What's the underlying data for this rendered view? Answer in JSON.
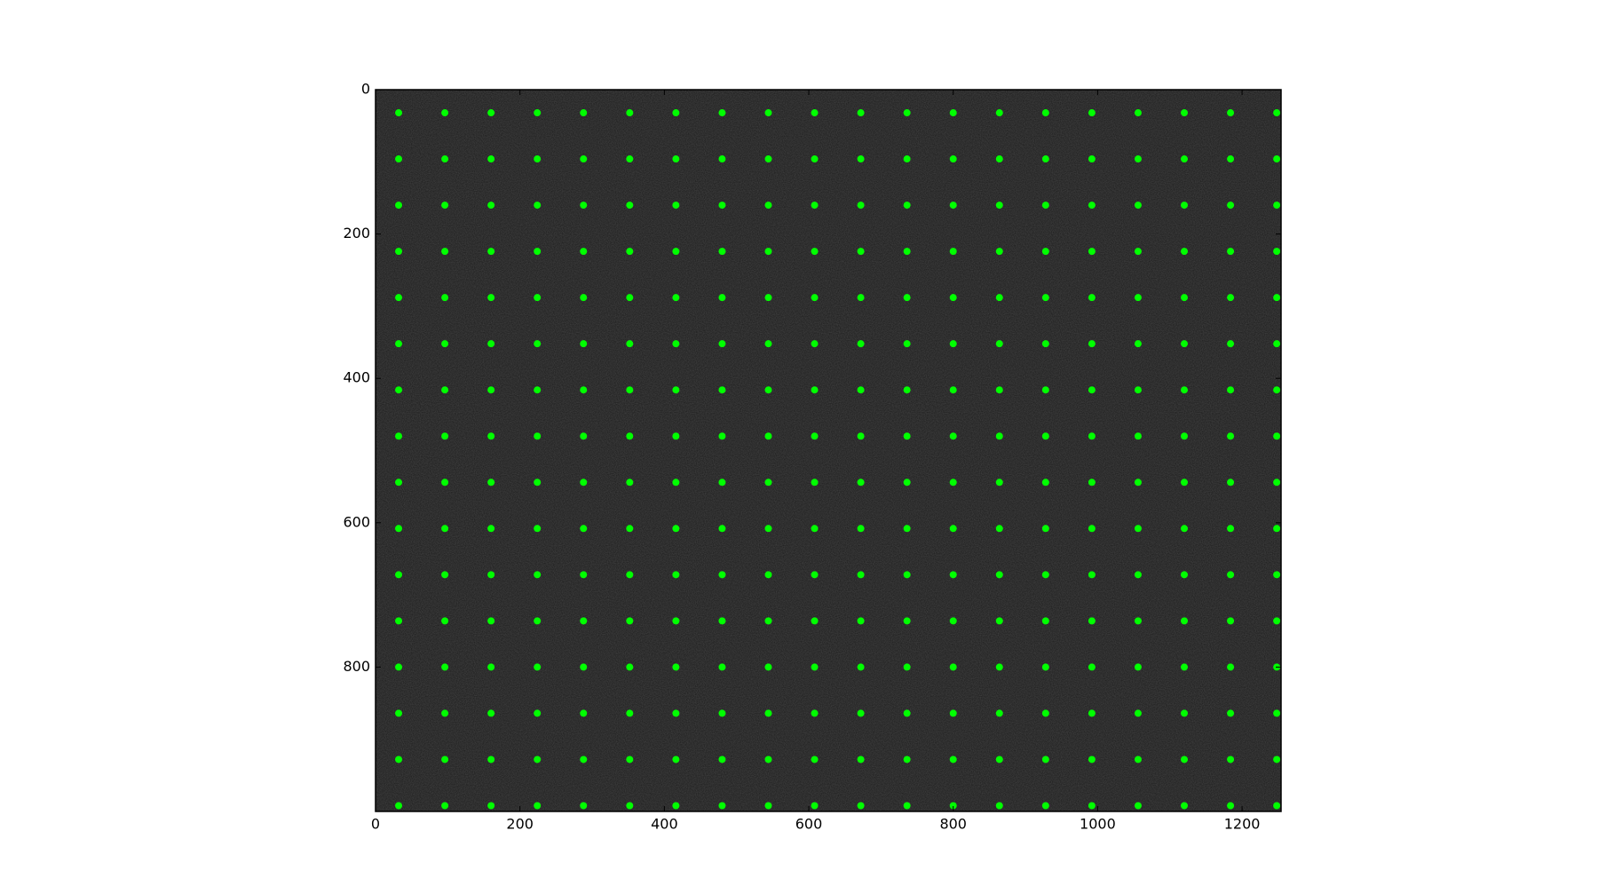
{
  "chart_data": {
    "type": "scatter",
    "x": [
      32,
      96,
      160,
      224,
      288,
      352,
      416,
      480,
      544,
      608,
      672,
      736,
      800,
      864,
      928,
      992,
      1056,
      1120,
      1184,
      1248
    ],
    "series": [
      {
        "color": "#00ff00",
        "values": [
          32,
          32,
          32,
          32,
          32,
          32,
          32,
          32,
          32,
          32,
          32,
          32,
          32,
          32,
          32,
          32,
          32,
          32,
          32,
          32
        ]
      },
      {
        "color": "#00ff00",
        "values": [
          96,
          96,
          96,
          96,
          96,
          96,
          96,
          96,
          96,
          96,
          96,
          96,
          96,
          96,
          96,
          96,
          96,
          96,
          96,
          96
        ]
      },
      {
        "color": "#00ff00",
        "values": [
          160,
          160,
          160,
          160,
          160,
          160,
          160,
          160,
          160,
          160,
          160,
          160,
          160,
          160,
          160,
          160,
          160,
          160,
          160,
          160
        ]
      },
      {
        "color": "#00ff00",
        "values": [
          224,
          224,
          224,
          224,
          224,
          224,
          224,
          224,
          224,
          224,
          224,
          224,
          224,
          224,
          224,
          224,
          224,
          224,
          224,
          224
        ]
      },
      {
        "color": "#00ff00",
        "values": [
          288,
          288,
          288,
          288,
          288,
          288,
          288,
          288,
          288,
          288,
          288,
          288,
          288,
          288,
          288,
          288,
          288,
          288,
          288,
          288
        ]
      },
      {
        "color": "#00ff00",
        "values": [
          352,
          352,
          352,
          352,
          352,
          352,
          352,
          352,
          352,
          352,
          352,
          352,
          352,
          352,
          352,
          352,
          352,
          352,
          352,
          352
        ]
      },
      {
        "color": "#00ff00",
        "values": [
          416,
          416,
          416,
          416,
          416,
          416,
          416,
          416,
          416,
          416,
          416,
          416,
          416,
          416,
          416,
          416,
          416,
          416,
          416,
          416
        ]
      },
      {
        "color": "#00ff00",
        "values": [
          480,
          480,
          480,
          480,
          480,
          480,
          480,
          480,
          480,
          480,
          480,
          480,
          480,
          480,
          480,
          480,
          480,
          480,
          480,
          480
        ]
      },
      {
        "color": "#00ff00",
        "values": [
          544,
          544,
          544,
          544,
          544,
          544,
          544,
          544,
          544,
          544,
          544,
          544,
          544,
          544,
          544,
          544,
          544,
          544,
          544,
          544
        ]
      },
      {
        "color": "#00ff00",
        "values": [
          608,
          608,
          608,
          608,
          608,
          608,
          608,
          608,
          608,
          608,
          608,
          608,
          608,
          608,
          608,
          608,
          608,
          608,
          608,
          608
        ]
      },
      {
        "color": "#00ff00",
        "values": [
          672,
          672,
          672,
          672,
          672,
          672,
          672,
          672,
          672,
          672,
          672,
          672,
          672,
          672,
          672,
          672,
          672,
          672,
          672,
          672
        ]
      },
      {
        "color": "#00ff00",
        "values": [
          736,
          736,
          736,
          736,
          736,
          736,
          736,
          736,
          736,
          736,
          736,
          736,
          736,
          736,
          736,
          736,
          736,
          736,
          736,
          736
        ]
      },
      {
        "color": "#00ff00",
        "values": [
          800,
          800,
          800,
          800,
          800,
          800,
          800,
          800,
          800,
          800,
          800,
          800,
          800,
          800,
          800,
          800,
          800,
          800,
          800,
          800
        ]
      },
      {
        "color": "#00ff00",
        "values": [
          864,
          864,
          864,
          864,
          864,
          864,
          864,
          864,
          864,
          864,
          864,
          864,
          864,
          864,
          864,
          864,
          864,
          864,
          864,
          864
        ]
      },
      {
        "color": "#00ff00",
        "values": [
          928,
          928,
          928,
          928,
          928,
          928,
          928,
          928,
          928,
          928,
          928,
          928,
          928,
          928,
          928,
          928,
          928,
          928,
          928,
          928
        ]
      },
      {
        "color": "#00ff00",
        "values": [
          992,
          992,
          992,
          992,
          992,
          992,
          992,
          992,
          992,
          992,
          992,
          992,
          992,
          992,
          992,
          992,
          992,
          992,
          992,
          992
        ]
      }
    ],
    "xlim": [
      0,
      1254
    ],
    "ylim": [
      1000,
      0
    ],
    "xticks": [
      0,
      200,
      400,
      600,
      800,
      1000,
      1200
    ],
    "yticks": [
      0,
      200,
      400,
      600,
      800
    ]
  }
}
